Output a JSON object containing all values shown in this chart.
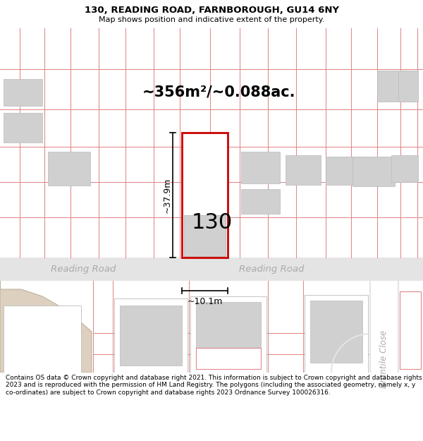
{
  "title": "130, READING ROAD, FARNBOROUGH, GU14 6NY",
  "subtitle": "Map shows position and indicative extent of the property.",
  "area_text": "~356m²/~0.088ac.",
  "width_text": "~10.1m",
  "height_text": "~37.9m",
  "label_130": "130",
  "road_name_left": "Reading Road",
  "road_name_right": "Reading Road",
  "road_name_bruntile": "Bruntile Close",
  "footer": "Contains OS data © Crown copyright and database right 2021. This information is subject to Crown copyright and database rights 2023 and is reproduced with the permission of HM Land Registry. The polygons (including the associated geometry, namely x, y co-ordinates) are subject to Crown copyright and database rights 2023 Ordnance Survey 100026316.",
  "title_fontsize": 9.5,
  "subtitle_fontsize": 8,
  "area_fontsize": 15,
  "label_fontsize": 22,
  "road_fontsize": 9.5,
  "footer_fontsize": 6.5,
  "red_line": "#e08888",
  "plot_red": "#cc0000",
  "building_fill": "#d0d0d0",
  "building_edge": "#bbbbbb",
  "road_fill": "#e4e4e4",
  "beige_fill": "#ddd0bf",
  "beige_edge": "#c0b09a"
}
